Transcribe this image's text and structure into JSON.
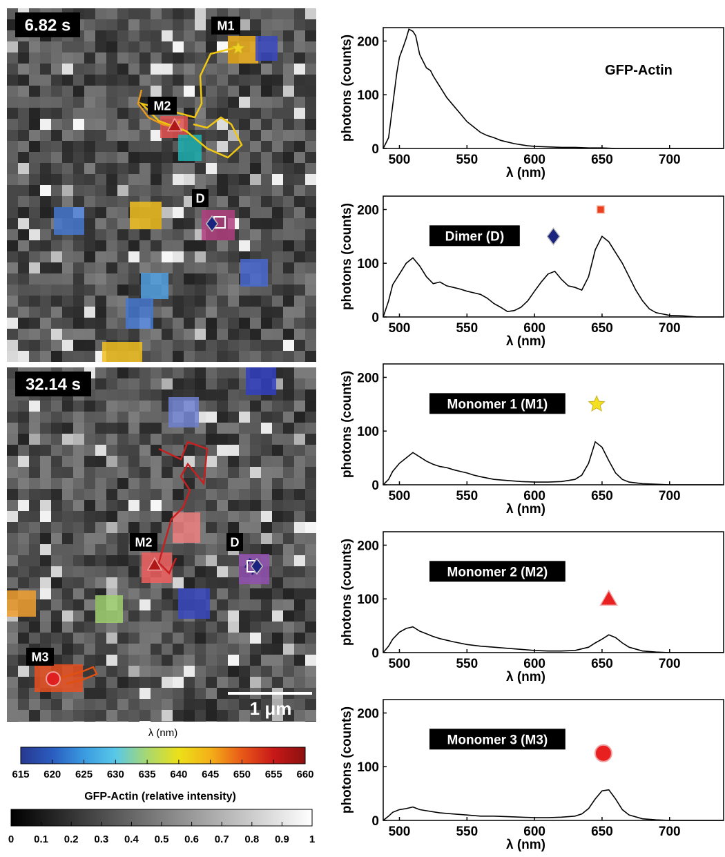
{
  "micrographs": [
    {
      "time_label": "6.82 s",
      "trajectories": [
        {
          "color": "#f0c814",
          "points": [
            [
              345,
              68
            ],
            [
              305,
              78
            ],
            [
              290,
              110
            ],
            [
              292,
              150
            ],
            [
              282,
              170
            ],
            [
              245,
              160
            ],
            [
              205,
              150
            ],
            [
              230,
              175
            ],
            [
              270,
              190
            ],
            [
              300,
              215
            ],
            [
              330,
              228
            ],
            [
              350,
              210
            ],
            [
              335,
              180
            ],
            [
              320,
              170
            ],
            [
              300,
              185
            ],
            [
              280,
              180
            ]
          ]
        },
        {
          "color": "#e89a18",
          "points": [
            [
              205,
              130
            ],
            [
              200,
              150
            ],
            [
              215,
              170
            ],
            [
              235,
              180
            ],
            [
              255,
              185
            ],
            [
              260,
              175
            ]
          ]
        }
      ],
      "particles": [
        {
          "label": "M1",
          "marker": "star",
          "color": "#f0d020"
        },
        {
          "label": "M2",
          "marker": "triangle",
          "color": "#c02020"
        },
        {
          "label": "D",
          "marker": "diamond+square",
          "color": "#1a237e"
        }
      ]
    },
    {
      "time_label": "32.14 s",
      "trajectories": [
        {
          "color": "#c82020",
          "points": [
            [
              230,
              650
            ],
            [
              262,
              665
            ],
            [
              272,
              640
            ],
            [
              300,
              650
            ],
            [
              295,
              700
            ],
            [
              272,
              672
            ],
            [
              262,
              690
            ],
            [
              275,
              710
            ],
            [
              265,
              735
            ],
            [
              248,
              752
            ],
            [
              240,
              780
            ],
            [
              230,
              815
            ],
            [
              245,
              830
            ],
            [
              255,
              808
            ]
          ]
        },
        {
          "color": "#1a237e",
          "points": [
            [
              355,
              822
            ],
            [
              362,
              810
            ],
            [
              372,
              820
            ],
            [
              365,
              832
            ]
          ]
        },
        {
          "color": "#e05010",
          "points": [
            [
              78,
              985
            ],
            [
              100,
              978
            ],
            [
              120,
              972
            ],
            [
              135,
              966
            ],
            [
              140,
              976
            ],
            [
              118,
              985
            ],
            [
              96,
              990
            ]
          ]
        }
      ],
      "particles": [
        {
          "label": "M2",
          "marker": "triangle",
          "color": "#c02020"
        },
        {
          "label": "D",
          "marker": "diamond+square",
          "color": "#1a237e"
        },
        {
          "label": "M3",
          "marker": "circle",
          "color": "#e02020"
        }
      ],
      "scale_bar_label": "1 μm"
    }
  ],
  "colorbar_wavelength": {
    "title": "λ (nm)",
    "ticks": [
      "615",
      "620",
      "625",
      "630",
      "635",
      "640",
      "645",
      "650",
      "655",
      "660"
    ],
    "colors": [
      "#283890",
      "#2a5cc0",
      "#3a9ae0",
      "#58c8e8",
      "#a8d870",
      "#ece018",
      "#f4b018",
      "#e85818",
      "#c81818",
      "#8c1010"
    ]
  },
  "colorbar_intensity": {
    "title": "GFP-Actin (relative intensity)",
    "ticks": [
      "0",
      "0.1",
      "0.2",
      "0.3",
      "0.4",
      "0.5",
      "0.6",
      "0.7",
      "0.8",
      "0.9",
      "1"
    ]
  },
  "chart_data": [
    {
      "type": "line",
      "annotation": "GFP-Actin",
      "xlabel": "λ (nm)",
      "ylabel": "photons (counts)",
      "xlim": [
        488,
        740
      ],
      "ylim": [
        0,
        225
      ],
      "xticks": [
        500,
        550,
        600,
        650,
        700
      ],
      "yticks": [
        0,
        100,
        200
      ],
      "x": [
        488,
        492,
        495,
        498,
        500,
        503,
        505,
        507,
        510,
        512,
        515,
        518,
        520,
        523,
        525,
        530,
        535,
        540,
        545,
        550,
        555,
        560,
        565,
        570,
        575,
        580,
        585,
        590,
        595,
        600,
        610,
        620,
        630,
        640,
        650,
        660,
        670,
        680,
        700,
        720,
        740
      ],
      "y": [
        0,
        20,
        80,
        140,
        170,
        190,
        205,
        222,
        218,
        210,
        175,
        160,
        150,
        145,
        135,
        115,
        95,
        80,
        65,
        50,
        40,
        30,
        24,
        20,
        15,
        12,
        9,
        7,
        5,
        4,
        3,
        2,
        2,
        1,
        1,
        0,
        0,
        0,
        0,
        0,
        0
      ]
    },
    {
      "type": "line",
      "annotation": "Dimer (D)",
      "markers": [
        {
          "shape": "diamond",
          "color": "#1a237e",
          "x": 614,
          "y": 150
        },
        {
          "shape": "square",
          "color": "#ea4020",
          "x": 649,
          "y": 200
        }
      ],
      "xlabel": "λ (nm)",
      "ylabel": "photons (counts)",
      "xlim": [
        488,
        740
      ],
      "ylim": [
        0,
        225
      ],
      "xticks": [
        500,
        550,
        600,
        650,
        700
      ],
      "yticks": [
        0,
        100,
        200
      ],
      "x": [
        488,
        492,
        495,
        500,
        505,
        510,
        515,
        520,
        525,
        530,
        535,
        540,
        545,
        550,
        555,
        560,
        565,
        570,
        575,
        580,
        585,
        590,
        595,
        600,
        605,
        610,
        615,
        620,
        625,
        630,
        635,
        640,
        645,
        650,
        655,
        660,
        665,
        670,
        675,
        680,
        685,
        690,
        700,
        710,
        720,
        740
      ],
      "y": [
        0,
        30,
        60,
        80,
        100,
        110,
        95,
        75,
        62,
        65,
        58,
        55,
        52,
        48,
        45,
        42,
        35,
        25,
        18,
        10,
        12,
        18,
        30,
        48,
        65,
        80,
        85,
        70,
        58,
        55,
        50,
        75,
        125,
        150,
        140,
        120,
        100,
        75,
        50,
        30,
        15,
        8,
        3,
        2,
        0,
        0
      ]
    },
    {
      "type": "line",
      "annotation": "Monomer 1 (M1)",
      "markers": [
        {
          "shape": "star",
          "color": "#f4e020",
          "x": 646,
          "y": 150
        }
      ],
      "xlabel": "λ (nm)",
      "ylabel": "photons (counts)",
      "xlim": [
        488,
        740
      ],
      "ylim": [
        0,
        225
      ],
      "xticks": [
        500,
        550,
        600,
        650,
        700
      ],
      "yticks": [
        0,
        100,
        200
      ],
      "x": [
        488,
        492,
        495,
        500,
        505,
        510,
        515,
        520,
        525,
        530,
        535,
        540,
        545,
        550,
        555,
        560,
        570,
        580,
        590,
        600,
        610,
        620,
        630,
        635,
        640,
        645,
        650,
        655,
        660,
        665,
        670,
        680,
        690,
        700,
        720,
        740
      ],
      "y": [
        0,
        10,
        25,
        40,
        50,
        60,
        52,
        44,
        38,
        34,
        32,
        28,
        25,
        22,
        18,
        15,
        10,
        8,
        6,
        5,
        5,
        6,
        10,
        18,
        40,
        80,
        70,
        45,
        22,
        10,
        5,
        2,
        1,
        0,
        0,
        0
      ]
    },
    {
      "type": "line",
      "annotation": "Monomer 2 (M2)",
      "markers": [
        {
          "shape": "triangle",
          "color": "#e82020",
          "x": 655,
          "y": 100
        }
      ],
      "xlabel": "λ (nm)",
      "ylabel": "photons (counts)",
      "xlim": [
        488,
        740
      ],
      "ylim": [
        0,
        225
      ],
      "xticks": [
        500,
        550,
        600,
        650,
        700
      ],
      "yticks": [
        0,
        100,
        200
      ],
      "x": [
        488,
        492,
        495,
        500,
        505,
        510,
        515,
        520,
        525,
        530,
        540,
        550,
        560,
        570,
        580,
        590,
        600,
        610,
        620,
        630,
        640,
        645,
        650,
        655,
        660,
        665,
        670,
        680,
        690,
        700,
        720,
        740
      ],
      "y": [
        0,
        12,
        25,
        38,
        45,
        48,
        40,
        35,
        30,
        26,
        20,
        15,
        12,
        10,
        8,
        6,
        4,
        3,
        3,
        4,
        10,
        18,
        25,
        33,
        28,
        18,
        10,
        3,
        1,
        0,
        0,
        0
      ]
    },
    {
      "type": "line",
      "annotation": "Monomer 3 (M3)",
      "markers": [
        {
          "shape": "circle",
          "color": "#e82020",
          "x": 651,
          "y": 125
        }
      ],
      "xlabel": "λ (nm)",
      "ylabel": "photons (counts)",
      "xlim": [
        488,
        740
      ],
      "ylim": [
        0,
        225
      ],
      "xticks": [
        500,
        550,
        600,
        650,
        700
      ],
      "yticks": [
        0,
        100,
        200
      ],
      "x": [
        488,
        492,
        495,
        500,
        505,
        510,
        515,
        520,
        525,
        530,
        540,
        550,
        560,
        570,
        580,
        590,
        600,
        610,
        620,
        630,
        635,
        640,
        645,
        650,
        655,
        660,
        665,
        670,
        680,
        690,
        700,
        720,
        740
      ],
      "y": [
        0,
        8,
        15,
        20,
        22,
        25,
        20,
        18,
        16,
        14,
        12,
        10,
        8,
        8,
        7,
        6,
        5,
        5,
        6,
        8,
        12,
        22,
        40,
        55,
        57,
        40,
        20,
        10,
        3,
        1,
        0,
        0,
        0
      ]
    }
  ]
}
